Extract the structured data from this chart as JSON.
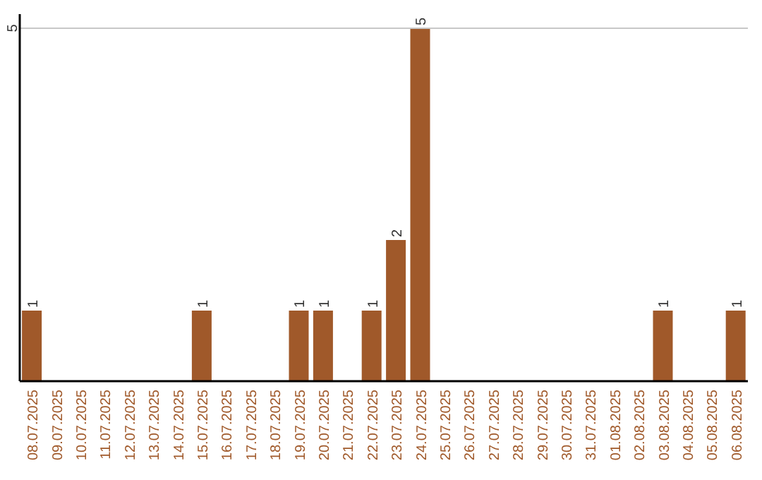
{
  "chart_data": {
    "type": "bar",
    "categories": [
      "08.07.2025",
      "09.07.2025",
      "10.07.2025",
      "11.07.2025",
      "12.07.2025",
      "13.07.2025",
      "14.07.2025",
      "15.07.2025",
      "16.07.2025",
      "17.07.2025",
      "18.07.2025",
      "19.07.2025",
      "20.07.2025",
      "21.07.2025",
      "22.07.2025",
      "23.07.2025",
      "24.07.2025",
      "25.07.2025",
      "26.07.2025",
      "27.07.2025",
      "28.07.2025",
      "29.07.2025",
      "30.07.2025",
      "31.07.2025",
      "01.08.2025",
      "02.08.2025",
      "03.08.2025",
      "04.08.2025",
      "05.08.2025",
      "06.08.2025"
    ],
    "values": [
      1,
      0,
      0,
      0,
      0,
      0,
      0,
      1,
      0,
      0,
      0,
      1,
      1,
      0,
      1,
      2,
      5,
      0,
      0,
      0,
      0,
      0,
      0,
      0,
      0,
      0,
      1,
      0,
      0,
      1
    ],
    "value_labels": [
      "1",
      null,
      null,
      null,
      null,
      null,
      null,
      "1",
      null,
      null,
      null,
      "1",
      "1",
      null,
      "1",
      "2",
      "5",
      null,
      null,
      null,
      null,
      null,
      null,
      null,
      null,
      null,
      "1",
      null,
      null,
      "1"
    ],
    "color": "#a0592a",
    "ylim": [
      0,
      5.2
    ],
    "yticks": [
      5
    ],
    "grid": "y"
  }
}
